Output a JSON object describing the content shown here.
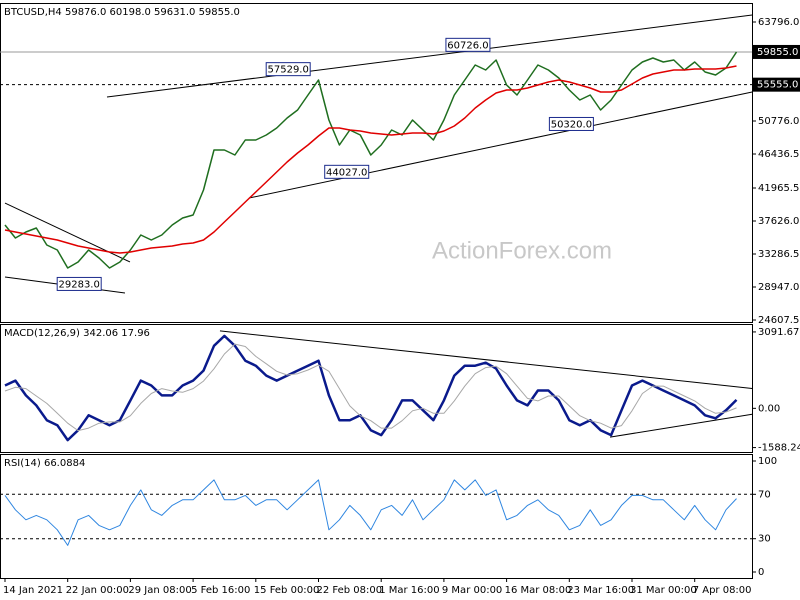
{
  "chart_data": [
    {
      "type": "line",
      "title": "BTCUSD,H4  59876.0 60198.0 59631.0 59855.0",
      "watermark": "ActionForex.com",
      "ylim": [
        24344,
        66162
      ],
      "yticks": [
        {
          "value": 63796,
          "label": "63796.0"
        },
        {
          "value": 50776,
          "label": "50776.0"
        },
        46436.5,
        41965.5,
        {
          "value": 37626,
          "label": "37626.0"
        },
        33286.5,
        {
          "value": 28947,
          "label": "28947.0"
        },
        24607.5
      ],
      "levels": [
        {
          "value": 59855,
          "label": "59855.0",
          "style": "solid"
        },
        {
          "value": 55555,
          "label": "55555.0",
          "style": "dashed"
        }
      ],
      "series": [
        {
          "color": "#1f6e1f",
          "values": [
            37100,
            35390,
            36180,
            36700,
            34470,
            33810,
            31450,
            32240,
            33810,
            32760,
            31450,
            32240,
            33810,
            35790,
            35130,
            35790,
            37100,
            38020,
            38420,
            41700,
            46960,
            46960,
            46310,
            48280,
            48280,
            48940,
            49860,
            51170,
            52220,
            54200,
            56170,
            50910,
            47620,
            49590,
            48940,
            46310,
            47620,
            49590,
            48940,
            50910,
            49590,
            48280,
            50910,
            54200,
            56170,
            58140,
            57480,
            58800,
            55510,
            54200,
            56170,
            58140,
            57480,
            56430,
            54850,
            53540,
            54200,
            52220,
            53540,
            55510,
            57480,
            58530,
            59060,
            58530,
            58800,
            57480,
            58530,
            57220,
            56830,
            57750,
            59855
          ]
        },
        {
          "color": "#e00000",
          "values": [
            36440,
            36180,
            35920,
            35650,
            35390,
            35130,
            34730,
            34340,
            34080,
            33810,
            33550,
            33420,
            33550,
            33810,
            34080,
            34210,
            34340,
            34600,
            34730,
            35130,
            36180,
            37490,
            38810,
            40120,
            41440,
            42750,
            44070,
            45380,
            46570,
            47620,
            48800,
            49860,
            49860,
            49590,
            49460,
            49200,
            49070,
            48940,
            49070,
            49200,
            49200,
            49070,
            49460,
            50120,
            51170,
            52490,
            53540,
            54460,
            54850,
            54850,
            55120,
            55510,
            55900,
            56170,
            55900,
            55510,
            55120,
            54590,
            54590,
            54850,
            55640,
            56430,
            56960,
            57220,
            57480,
            57480,
            57610,
            57610,
            57610,
            57750,
            58010
          ]
        }
      ],
      "annotations": [
        {
          "label": "60726.0",
          "value": 60726,
          "at": 44.3
        },
        {
          "label": "57529.0",
          "value": 57529,
          "at": 27.1
        },
        {
          "label": "44027.0",
          "value": 44027,
          "at": 32.7
        },
        {
          "label": "50320.0",
          "value": 50320,
          "at": 54.2
        },
        {
          "label": "29283.0",
          "value": 29283,
          "at": 7.1
        }
      ],
      "trendlines": [
        {
          "from": [
            9.76,
            53932
          ],
          "to": [
            71.5,
            64715
          ]
        },
        {
          "from": [
            23.35,
            40650
          ],
          "to": [
            71.5,
            54590
          ]
        },
        {
          "from": [
            0,
            39990
          ],
          "to": [
            11.96,
            32240
          ]
        },
        {
          "from": [
            0,
            30260
          ],
          "to": [
            11.48,
            28160
          ]
        }
      ]
    },
    {
      "type": "line",
      "title": "MACD(12,26,9) 342.06 17.96",
      "ylim": [
        -1767,
        3372
      ],
      "yticks": [
        3091.67,
        {
          "value": 0,
          "label": "0.00"
        },
        -1588.24
      ],
      "series": [
        {
          "color": "#0a1a8c",
          "width": 2.5,
          "values": [
            923,
            1124,
            522,
            120,
            -482,
            -683,
            -1285,
            -883,
            -281,
            -482,
            -683,
            -482,
            321,
            1124,
            923,
            522,
            522,
            923,
            1124,
            1526,
            2529,
            2931,
            2529,
            1927,
            1726,
            1325,
            1124,
            1325,
            1526,
            1726,
            1927,
            522,
            -482,
            -482,
            -281,
            -883,
            -1084,
            -482,
            321,
            321,
            -80,
            -482,
            321,
            1325,
            1726,
            1726,
            1847,
            1606,
            923,
            321,
            120,
            723,
            723,
            321,
            -482,
            -683,
            -482,
            -883,
            -1084,
            -80,
            923,
            1124,
            923,
            723,
            522,
            321,
            120,
            -281,
            -402,
            -80,
            342
          ]
        },
        {
          "color": "#a8a8a8",
          "width": 1,
          "values": [
            700,
            850,
            800,
            500,
            200,
            -200,
            -600,
            -900,
            -800,
            -600,
            -550,
            -550,
            -300,
            200,
            600,
            800,
            700,
            650,
            800,
            1100,
            1600,
            2200,
            2600,
            2500,
            2100,
            1800,
            1500,
            1350,
            1400,
            1550,
            1750,
            1500,
            800,
            100,
            -300,
            -500,
            -800,
            -800,
            -500,
            -100,
            0,
            -200,
            -200,
            300,
            900,
            1400,
            1650,
            1700,
            1400,
            900,
            400,
            300,
            500,
            500,
            100,
            -300,
            -500,
            -600,
            -800,
            -700,
            -100,
            600,
            900,
            900,
            700,
            500,
            300,
            0,
            -200,
            -150,
            18
          ]
        }
      ],
      "trendlines": [
        {
          "from": [
            20.57,
            3132
          ],
          "to": [
            71.5,
            803
          ]
        },
        {
          "from": [
            57.9,
            -1164
          ],
          "to": [
            71.5,
            -241
          ]
        }
      ]
    },
    {
      "type": "line",
      "title": "RSI(14) 66.0884",
      "ylim": [
        -5.4,
        105.4
      ],
      "yticks": [
        100,
        70,
        30,
        0
      ],
      "levels": [
        {
          "value": 70,
          "style": "dashed"
        },
        {
          "value": 30,
          "style": "dashed"
        }
      ],
      "categories": [
        "14 Jan 2021",
        null,
        null,
        null,
        null,
        null,
        "22 Jan 00:00",
        null,
        null,
        null,
        null,
        null,
        "29 Jan 08:00",
        null,
        null,
        null,
        null,
        null,
        "5 Feb 16:00",
        null,
        null,
        null,
        null,
        null,
        "15 Feb 00:00",
        null,
        null,
        null,
        null,
        null,
        "22 Feb 08:00",
        null,
        null,
        null,
        null,
        null,
        "1 Mar 16:00",
        null,
        null,
        null,
        null,
        null,
        "9 Mar 00:00",
        null,
        null,
        null,
        null,
        null,
        "16 Mar 08:00",
        null,
        null,
        null,
        null,
        null,
        "23 Mar 16:00",
        null,
        null,
        null,
        null,
        null,
        "31 Mar 00:00",
        null,
        null,
        null,
        null,
        null,
        "7 Apr 08:00",
        null,
        null,
        null,
        null
      ],
      "series": [
        {
          "color": "#2f86e0",
          "width": 1,
          "values": [
            69,
            56,
            47,
            51,
            47,
            38,
            24,
            47,
            51,
            42,
            38,
            42,
            60,
            74,
            56,
            51,
            60,
            65,
            65,
            74,
            83,
            65,
            65,
            69,
            60,
            65,
            65,
            56,
            65,
            74,
            83,
            38,
            47,
            60,
            51,
            38,
            56,
            60,
            51,
            65,
            47,
            56,
            65,
            83,
            74,
            83,
            69,
            74,
            47,
            51,
            60,
            65,
            56,
            51,
            38,
            42,
            56,
            42,
            47,
            60,
            69,
            69,
            65,
            65,
            56,
            47,
            60,
            47,
            38,
            56,
            66.0884
          ]
        }
      ]
    }
  ]
}
